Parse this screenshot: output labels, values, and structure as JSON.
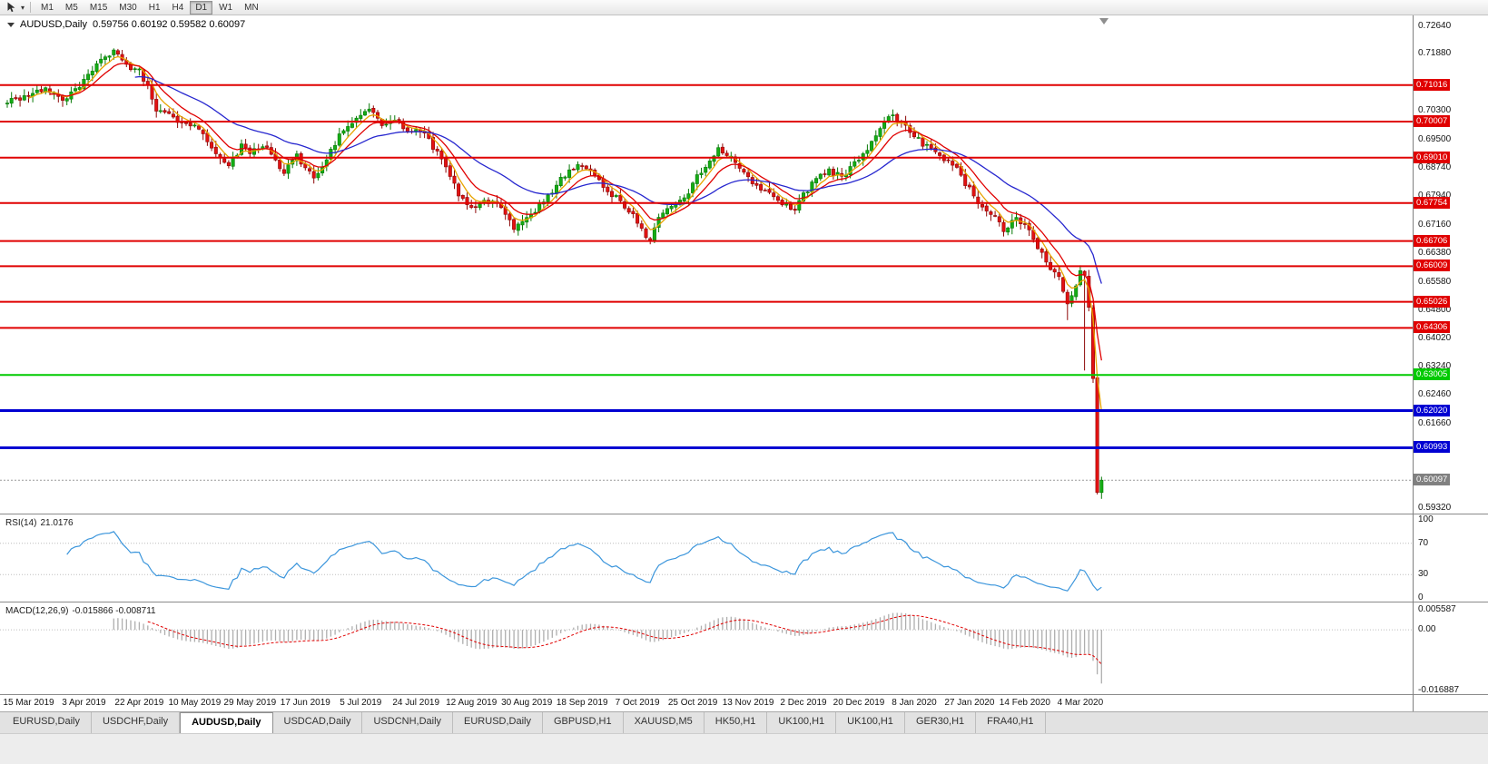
{
  "toolbar": {
    "icons": [
      "cursor-arrow",
      "dropdown-caret"
    ],
    "timeframes": [
      {
        "label": "M1",
        "active": false
      },
      {
        "label": "M5",
        "active": false
      },
      {
        "label": "M15",
        "active": false
      },
      {
        "label": "M30",
        "active": false
      },
      {
        "label": "H1",
        "active": false
      },
      {
        "label": "H4",
        "active": false
      },
      {
        "label": "D1",
        "active": true
      },
      {
        "label": "W1",
        "active": false
      },
      {
        "label": "MN",
        "active": false
      }
    ]
  },
  "chart": {
    "symbol": "AUDUSD,Daily",
    "ohlc": "0.59756 0.60192 0.59582 0.60097"
  },
  "colors": {
    "up": "#14ad14",
    "up_stroke": "#077907",
    "down": "#e31212",
    "down_stroke": "#8d0707",
    "ma_fast": "#e8a400",
    "ma_mid": "#e00000",
    "ma_slow": "#2727cf",
    "resistance": "#e00000",
    "support_green": "#00ca00",
    "support_blue": "#0000d2",
    "current": "#808080",
    "rsi": "#3c96dc",
    "macd_hist": "#aeaeae",
    "macd_signal": "#e00000",
    "grid_dotted": "#bdbdbd"
  },
  "chart_data": {
    "type": "candlestick",
    "symbol": "AUDUSD",
    "timeframe": "Daily",
    "last_bar": {
      "open": 0.59756,
      "high": 0.60192,
      "low": 0.59582,
      "close": 0.60097
    },
    "num_candles": 258,
    "label_start": 5,
    "label_step": 13,
    "price_axis": {
      "min": 0.592,
      "max": 0.7294,
      "labels": [
        "0.72640",
        "0.71880",
        "0.70300",
        "0.69500",
        "0.68740",
        "0.67940",
        "0.67160",
        "0.66380",
        "0.65580",
        "0.64800",
        "0.64020",
        "0.63240",
        "0.62460",
        "0.61660",
        "0.59320"
      ]
    },
    "tags": {
      "red": [
        0.71016,
        0.70007,
        0.6901,
        0.67754,
        0.66706,
        0.66009,
        0.65026,
        0.64306
      ],
      "green": [
        0.63005
      ],
      "blue": [
        0.6202,
        0.60993
      ],
      "current": 0.60097
    },
    "x_labels": [
      "15 Mar 2019",
      "3 Apr 2019",
      "22 Apr 2019",
      "10 May 2019",
      "29 May 2019",
      "17 Jun 2019",
      "5 Jul 2019",
      "24 Jul 2019",
      "12 Aug 2019",
      "30 Aug 2019",
      "18 Sep 2019",
      "7 Oct 2019",
      "25 Oct 2019",
      "13 Nov 2019",
      "2 Dec 2019",
      "20 Dec 2019",
      "8 Jan 2020",
      "27 Jan 2020",
      "14 Feb 2020",
      "4 Mar 2020"
    ],
    "anchors": [
      [
        0,
        0.706
      ],
      [
        5,
        0.7072
      ],
      [
        9,
        0.709
      ],
      [
        13,
        0.7058
      ],
      [
        18,
        0.7115
      ],
      [
        22,
        0.718
      ],
      [
        25,
        0.7195
      ],
      [
        28,
        0.715
      ],
      [
        31,
        0.714
      ],
      [
        33,
        0.7098
      ],
      [
        35,
        0.703
      ],
      [
        38,
        0.7015
      ],
      [
        41,
        0.7
      ],
      [
        44,
        0.699
      ],
      [
        47,
        0.6945
      ],
      [
        50,
        0.6898
      ],
      [
        52,
        0.6878
      ],
      [
        55,
        0.6935
      ],
      [
        57,
        0.692
      ],
      [
        60,
        0.6938
      ],
      [
        63,
        0.6888
      ],
      [
        65,
        0.6865
      ],
      [
        68,
        0.6905
      ],
      [
        70,
        0.6875
      ],
      [
        72,
        0.685
      ],
      [
        75,
        0.69
      ],
      [
        78,
        0.6958
      ],
      [
        81,
        0.699
      ],
      [
        83,
        0.7022
      ],
      [
        85,
        0.704
      ],
      [
        88,
        0.6985
      ],
      [
        91,
        0.7002
      ],
      [
        94,
        0.6975
      ],
      [
        96,
        0.6985
      ],
      [
        99,
        0.695
      ],
      [
        102,
        0.6898
      ],
      [
        104,
        0.6845
      ],
      [
        106,
        0.6798
      ],
      [
        109,
        0.676
      ],
      [
        112,
        0.6788
      ],
      [
        115,
        0.6772
      ],
      [
        117,
        0.6745
      ],
      [
        119,
        0.6705
      ],
      [
        122,
        0.6732
      ],
      [
        125,
        0.6772
      ],
      [
        128,
        0.6806
      ],
      [
        131,
        0.6856
      ],
      [
        134,
        0.6882
      ],
      [
        136,
        0.6868
      ],
      [
        139,
        0.684
      ],
      [
        142,
        0.68
      ],
      [
        145,
        0.6768
      ],
      [
        147,
        0.6738
      ],
      [
        149,
        0.67
      ],
      [
        151,
        0.6677
      ],
      [
        153,
        0.6745
      ],
      [
        156,
        0.6762
      ],
      [
        159,
        0.679
      ],
      [
        161,
        0.683
      ],
      [
        164,
        0.688
      ],
      [
        167,
        0.6922
      ],
      [
        170,
        0.6898
      ],
      [
        172,
        0.6865
      ],
      [
        174,
        0.684
      ],
      [
        177,
        0.6812
      ],
      [
        180,
        0.679
      ],
      [
        183,
        0.6772
      ],
      [
        185,
        0.6756
      ],
      [
        187,
        0.68
      ],
      [
        190,
        0.684
      ],
      [
        193,
        0.6866
      ],
      [
        196,
        0.6846
      ],
      [
        198,
        0.687
      ],
      [
        200,
        0.69
      ],
      [
        203,
        0.6942
      ],
      [
        206,
        0.699
      ],
      [
        208,
        0.7025
      ],
      [
        210,
        0.6992
      ],
      [
        213,
        0.6962
      ],
      [
        216,
        0.693
      ],
      [
        219,
        0.6906
      ],
      [
        222,
        0.688
      ],
      [
        224,
        0.6852
      ],
      [
        226,
        0.6812
      ],
      [
        229,
        0.6762
      ],
      [
        232,
        0.6732
      ],
      [
        234,
        0.67
      ],
      [
        237,
        0.6732
      ],
      [
        239,
        0.6712
      ],
      [
        241,
        0.668
      ],
      [
        243,
        0.6632
      ],
      [
        245,
        0.66
      ],
      [
        247,
        0.6578
      ],
      [
        249,
        0.6497
      ],
      [
        251,
        0.6542
      ],
      [
        252,
        0.659
      ],
      [
        253,
        0.658
      ],
      [
        254,
        0.6488
      ],
      [
        255,
        0.6285
      ],
      [
        256,
        0.5976
      ],
      [
        257,
        0.60097
      ]
    ],
    "special": {
      "249": {
        "low": 0.6452
      },
      "253": {
        "low": 0.6313
      },
      "257": {
        "open": 0.59756,
        "high": 0.60192,
        "low": 0.59582,
        "close": 0.60097
      }
    },
    "moving_averages": [
      {
        "kind": "ema",
        "period": 5,
        "color_key": "ma_fast"
      },
      {
        "kind": "ema",
        "period": 10,
        "color_key": "ma_mid"
      },
      {
        "kind": "ema",
        "period": 30,
        "color_key": "ma_slow"
      }
    ],
    "rsi": {
      "label": "RSI(14)",
      "value": "21.0176",
      "period": 14,
      "levels": [
        100,
        70,
        30,
        0
      ],
      "dotted_levels": [
        70,
        30
      ]
    },
    "macd": {
      "label": "MACD(12,26,9)",
      "values": "-0.015866 -0.008711",
      "fast": 12,
      "slow": 26,
      "signal": 9,
      "axis": [
        "0.005587",
        "0.00",
        "-0.016887"
      ],
      "scale_max": 0.005587,
      "scale_min": -0.016887
    }
  },
  "tabbar": {
    "tabs": [
      {
        "label": "EURUSD,Daily",
        "active": false
      },
      {
        "label": "USDCHF,Daily",
        "active": false
      },
      {
        "label": "AUDUSD,Daily",
        "active": true
      },
      {
        "label": "USDCAD,Daily",
        "active": false
      },
      {
        "label": "USDCNH,Daily",
        "active": false
      },
      {
        "label": "EURUSD,Daily",
        "active": false
      },
      {
        "label": "GBPUSD,H1",
        "active": false
      },
      {
        "label": "XAUUSD,M5",
        "active": false
      },
      {
        "label": "HK50,H1",
        "active": false
      },
      {
        "label": "UK100,H1",
        "active": false
      },
      {
        "label": "UK100,H1",
        "active": false
      },
      {
        "label": "GER30,H1",
        "active": false
      },
      {
        "label": "FRA40,H1",
        "active": false
      }
    ]
  }
}
